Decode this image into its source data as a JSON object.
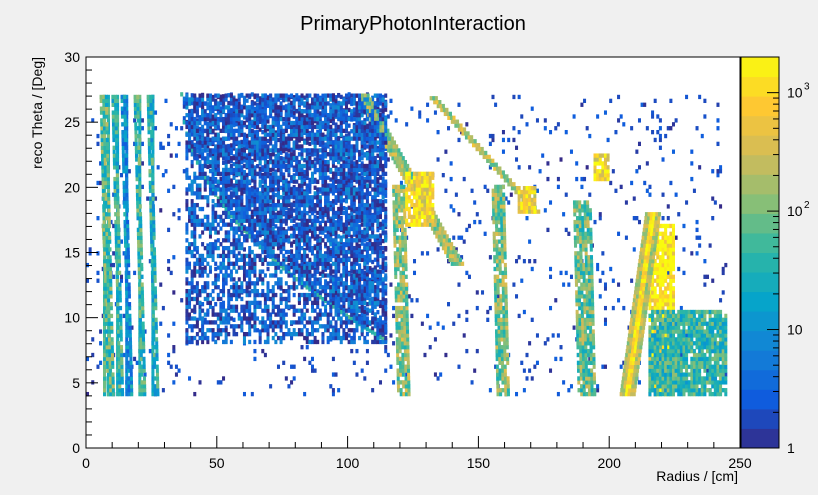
{
  "chart_data": {
    "type": "heatmap",
    "title": "PrimaryPhotonInteraction",
    "xlabel": "Radius / [cm]",
    "ylabel": "reco Theta / [Deg]",
    "xlim": [
      0,
      250
    ],
    "ylim": [
      0,
      30
    ],
    "x_ticks": [
      0,
      50,
      100,
      150,
      200,
      250
    ],
    "y_ticks": [
      0,
      5,
      10,
      15,
      20,
      25,
      30
    ],
    "x_tick_labels": [
      "0",
      "50",
      "100",
      "150",
      "200",
      "250"
    ],
    "y_tick_labels": [
      "0",
      "5",
      "10",
      "15",
      "20",
      "25",
      "30"
    ],
    "z_scale": "log",
    "z_range": [
      1,
      2000
    ],
    "colorbar_ticks": [
      {
        "value": 1,
        "base": "1",
        "exp": ""
      },
      {
        "value": 10,
        "base": "10",
        "exp": ""
      },
      {
        "value": 100,
        "base": "10",
        "exp": "2"
      },
      {
        "value": 1000,
        "base": "10",
        "exp": "3"
      }
    ],
    "colormap": "parula",
    "colormap_stops": [
      "#352a87",
      "#0f5cdd",
      "#1481d6",
      "#06a4ca",
      "#2eb7a4",
      "#87bf77",
      "#d1bb59",
      "#fec832",
      "#f9fb0e"
    ],
    "background": "#f0f0f0",
    "data_range": {
      "x": [
        0,
        245
      ],
      "theta": [
        4,
        27
      ]
    },
    "structures": [
      {
        "kind": "band",
        "x": [
          6,
          9
        ],
        "theta": [
          4,
          27
        ],
        "counts": 60
      },
      {
        "kind": "band",
        "x": [
          10.5,
          12.5
        ],
        "theta": [
          4,
          27
        ],
        "counts": 40
      },
      {
        "kind": "band",
        "x": [
          14,
          16
        ],
        "theta": [
          4,
          27
        ],
        "counts": 10
      },
      {
        "kind": "band",
        "x": [
          19,
          21
        ],
        "theta": [
          4,
          27
        ],
        "counts": 40
      },
      {
        "kind": "band",
        "x": [
          24,
          26
        ],
        "theta": [
          4,
          27
        ],
        "counts": 30
      },
      {
        "kind": "band",
        "x": [
          117,
          122
        ],
        "theta": [
          4,
          20
        ],
        "counts": 120
      },
      {
        "kind": "band",
        "x": [
          155,
          160
        ],
        "theta": [
          4,
          20
        ],
        "counts": 100
      },
      {
        "kind": "band",
        "x": [
          186,
          193
        ],
        "theta": [
          4,
          19
        ],
        "counts": 80
      },
      {
        "kind": "blob",
        "x": [
          122,
          133
        ],
        "theta": [
          17,
          21
        ],
        "counts": 800
      },
      {
        "kind": "blob",
        "x": [
          165,
          172
        ],
        "theta": [
          18,
          20
        ],
        "counts": 600
      },
      {
        "kind": "blob",
        "x": [
          194,
          200
        ],
        "theta": [
          20.5,
          22.5
        ],
        "counts": 800
      },
      {
        "kind": "blob",
        "x": [
          215,
          225
        ],
        "theta": [
          4,
          17
        ],
        "counts": 1500
      },
      {
        "kind": "blob",
        "x": [
          215,
          245
        ],
        "theta": [
          4,
          10.5
        ],
        "counts": 40
      },
      {
        "kind": "blob",
        "x": [
          38,
          115
        ],
        "theta": [
          8,
          27
        ],
        "counts": 3
      }
    ]
  }
}
